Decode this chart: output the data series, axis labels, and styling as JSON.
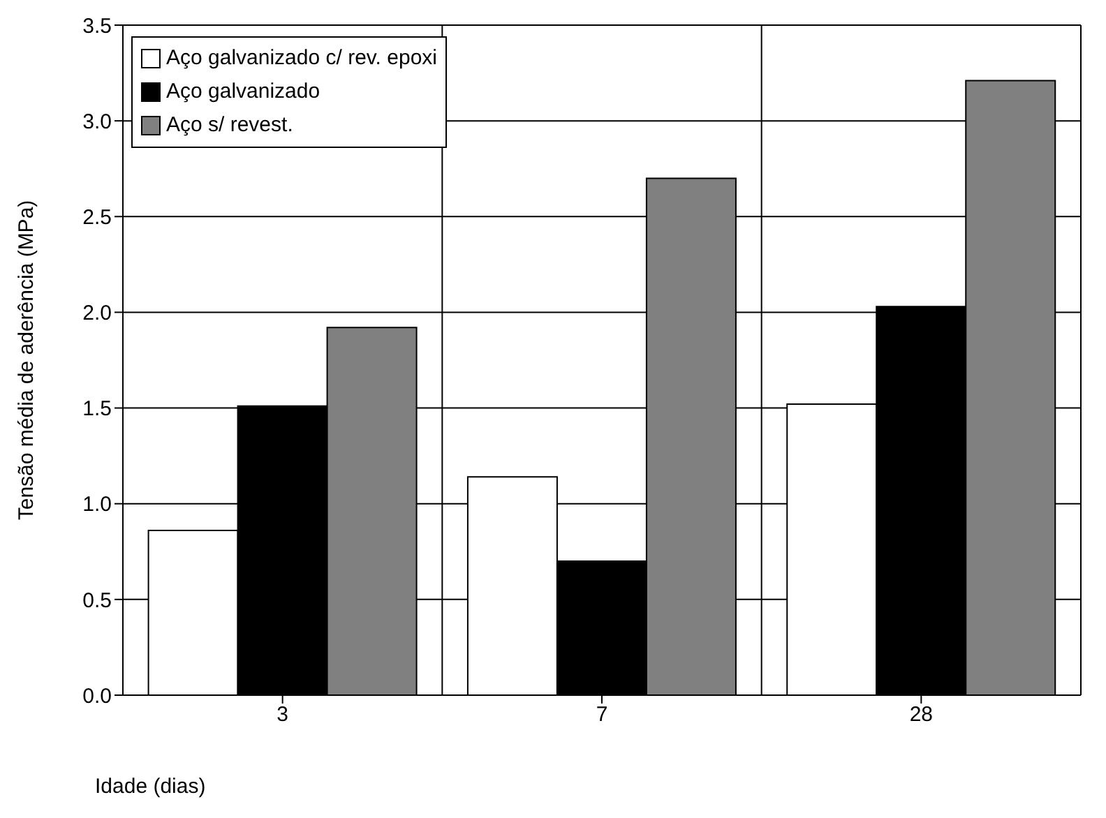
{
  "chart_data": {
    "type": "bar",
    "xlabel": "Idade (dias)",
    "ylabel": "Tensão média de aderência (MPa)",
    "categories": [
      "3",
      "7",
      "28"
    ],
    "series": [
      {
        "name": "Aço galvanizado c/ rev. epoxi",
        "color": "#ffffff",
        "values": [
          0.86,
          1.14,
          1.52
        ]
      },
      {
        "name": "Aço galvanizado",
        "color": "#000000",
        "values": [
          1.51,
          0.7,
          2.03
        ]
      },
      {
        "name": "Aço s/ revest.",
        "color": "#808080",
        "values": [
          1.92,
          2.7,
          3.21
        ]
      }
    ],
    "ylim": [
      0,
      3.5
    ],
    "yticks": [
      {
        "value": 0,
        "label": "0.0"
      },
      {
        "value": 0.5,
        "label": "0.5"
      },
      {
        "value": 1,
        "label": "1.0"
      },
      {
        "value": 1.5,
        "label": "1.5"
      },
      {
        "value": 2,
        "label": "2.0"
      },
      {
        "value": 2.5,
        "label": "2.5"
      },
      {
        "value": 3,
        "label": "3.0"
      },
      {
        "value": 3.5,
        "label": "3.5"
      }
    ],
    "grid": true,
    "legend": "top left"
  }
}
